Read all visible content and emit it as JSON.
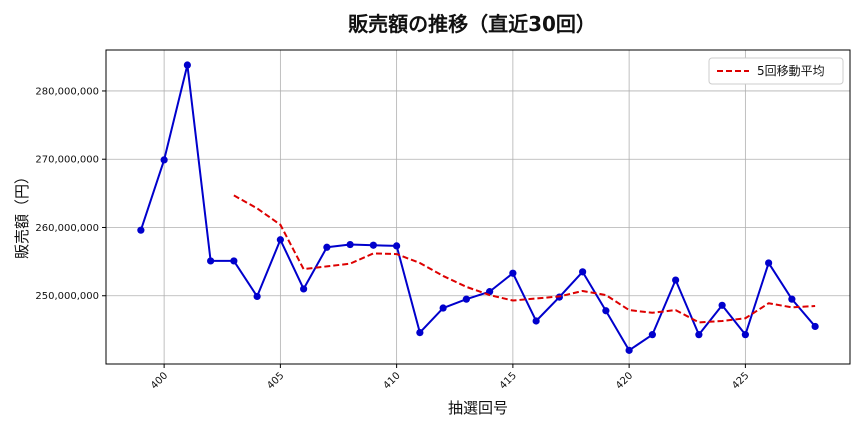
{
  "chart_data": {
    "type": "line",
    "title": "販売額の推移（直近30回）",
    "xlabel": "抽選回号",
    "ylabel": "販売額（円）",
    "xlim": [
      397.5,
      429.5
    ],
    "ylim": [
      240000000,
      286000000
    ],
    "xticks": [
      400,
      405,
      410,
      415,
      420,
      425
    ],
    "yticks": [
      250000000,
      260000000,
      270000000,
      280000000
    ],
    "ytick_labels": [
      "250,000,000",
      "260,000,000",
      "270,000,000",
      "280,000,000"
    ],
    "grid": true,
    "legend_position": "top-right",
    "x": [
      399,
      400,
      401,
      402,
      403,
      404,
      405,
      406,
      407,
      408,
      409,
      410,
      411,
      412,
      413,
      414,
      415,
      416,
      417,
      418,
      419,
      420,
      421,
      422,
      423,
      424,
      425,
      426,
      427,
      428
    ],
    "series": [
      {
        "role": "sales",
        "color": "#0000cc",
        "marker": "circle",
        "values": [
          259600000,
          269900000,
          283800000,
          255100000,
          255100000,
          249900000,
          258200000,
          251000000,
          257100000,
          257500000,
          257400000,
          257300000,
          244600000,
          248200000,
          249500000,
          250600000,
          253300000,
          246300000,
          249800000,
          253500000,
          247800000,
          242000000,
          244300000,
          252300000,
          244300000,
          248600000,
          244300000,
          254800000,
          249500000,
          245500000
        ]
      },
      {
        "name": "5回移動平均",
        "color": "#dd0000",
        "dash": "dashed",
        "x": [
          403,
          404,
          405,
          406,
          407,
          408,
          409,
          410,
          411,
          412,
          413,
          414,
          415,
          416,
          417,
          418,
          419,
          420,
          421,
          422,
          423,
          424,
          425,
          426,
          427,
          428
        ],
        "values": [
          264700000,
          262800000,
          260400000,
          253900000,
          254300000,
          254700000,
          256200000,
          256100000,
          254800000,
          252900000,
          251300000,
          250100000,
          249300000,
          249600000,
          249900000,
          250700000,
          250100000,
          247900000,
          247500000,
          247900000,
          246100000,
          246300000,
          246700000,
          248900000,
          248300000,
          248500000
        ]
      }
    ]
  }
}
